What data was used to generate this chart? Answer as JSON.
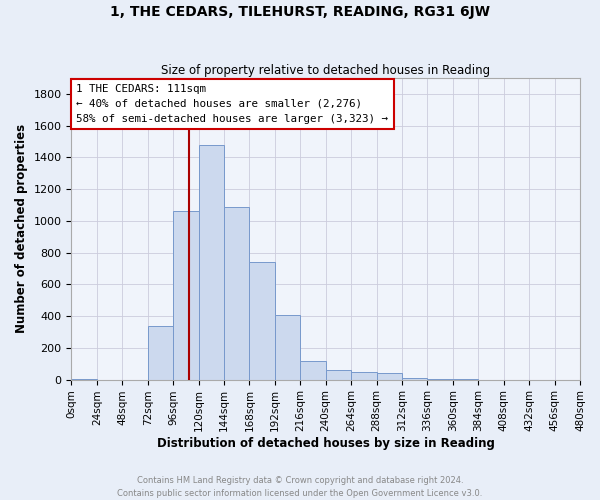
{
  "title": "1, THE CEDARS, TILEHURST, READING, RG31 6JW",
  "subtitle": "Size of property relative to detached houses in Reading",
  "xlabel": "Distribution of detached houses by size in Reading",
  "ylabel": "Number of detached properties",
  "footer_line1": "Contains HM Land Registry data © Crown copyright and database right 2024.",
  "footer_line2": "Contains public sector information licensed under the Open Government Licence v3.0.",
  "bin_edges": [
    0,
    24,
    48,
    72,
    96,
    120,
    144,
    168,
    192,
    216,
    240,
    264,
    288,
    312,
    336,
    360,
    384,
    408,
    432,
    456,
    480
  ],
  "bin_labels": [
    "0sqm",
    "24sqm",
    "48sqm",
    "72sqm",
    "96sqm",
    "120sqm",
    "144sqm",
    "168sqm",
    "192sqm",
    "216sqm",
    "240sqm",
    "264sqm",
    "288sqm",
    "312sqm",
    "336sqm",
    "360sqm",
    "384sqm",
    "408sqm",
    "432sqm",
    "456sqm",
    "480sqm"
  ],
  "counts": [
    5,
    0,
    0,
    340,
    1060,
    1480,
    1090,
    740,
    410,
    120,
    60,
    50,
    40,
    10,
    5,
    2,
    0,
    0,
    0,
    0
  ],
  "bar_color": "#ccd9ee",
  "bar_edge_color": "#7799cc",
  "property_sqm": 111,
  "vline_color": "#aa0000",
  "annotation_line1": "1 THE CEDARS: 111sqm",
  "annotation_line2": "← 40% of detached houses are smaller (2,276)",
  "annotation_line3": "58% of semi-detached houses are larger (3,323) →",
  "annotation_box_color": "white",
  "annotation_box_edge": "#cc0000",
  "ylim": [
    0,
    1900
  ],
  "yticks": [
    0,
    200,
    400,
    600,
    800,
    1000,
    1200,
    1400,
    1600,
    1800
  ],
  "xlim": [
    0,
    480
  ],
  "background_color": "#e8eef8",
  "plot_background": "#f0f4fb",
  "grid_color": "#ccccdd"
}
